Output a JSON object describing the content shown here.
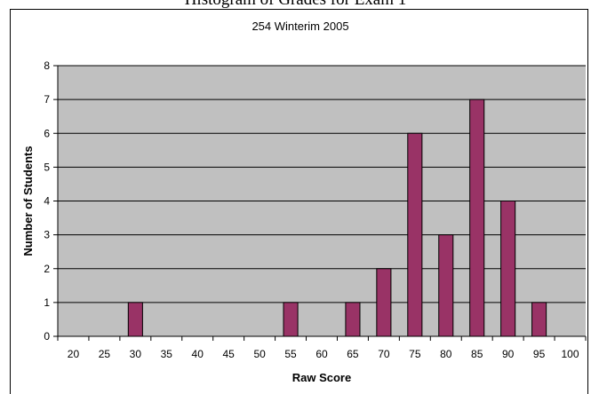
{
  "caption": "Histogram of Grades for Exam 1",
  "chart_data": {
    "type": "bar",
    "title": "254 Winterim 2005",
    "xlabel": "Raw Score",
    "ylabel": "Number of Students",
    "categories": [
      "20",
      "25",
      "30",
      "35",
      "40",
      "45",
      "50",
      "55",
      "60",
      "65",
      "70",
      "75",
      "80",
      "85",
      "90",
      "95",
      "100"
    ],
    "values": [
      0,
      0,
      1,
      0,
      0,
      0,
      0,
      1,
      0,
      1,
      2,
      6,
      3,
      7,
      4,
      1,
      0
    ],
    "ylim": [
      0,
      8
    ],
    "yticks": [
      "0",
      "1",
      "2",
      "3",
      "4",
      "5",
      "6",
      "7",
      "8"
    ],
    "grid": "horizontal",
    "legend": "none",
    "colors": {
      "plot_background": "#c0c0c0",
      "bar_fill": "#993366",
      "bar_stroke": "#000000",
      "gridline": "#000000"
    }
  }
}
